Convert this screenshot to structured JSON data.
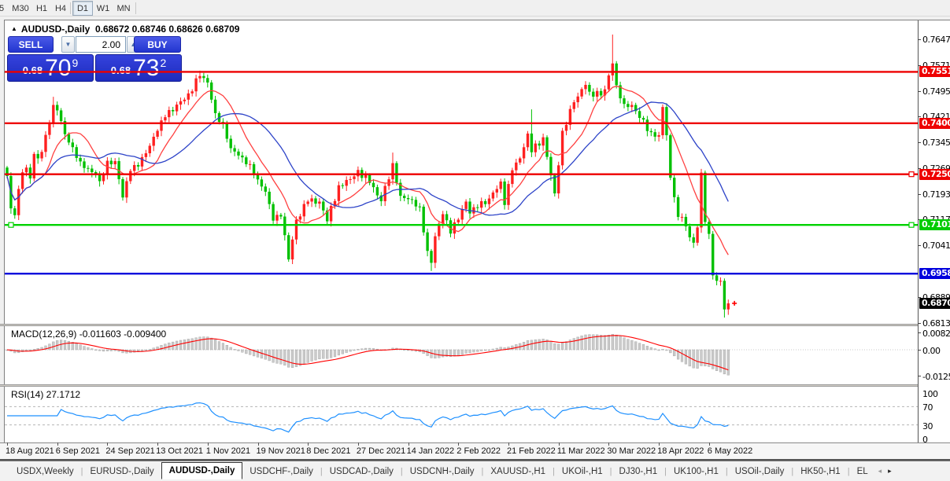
{
  "toolbar": {
    "timeframes": [
      "5",
      "M30",
      "H1",
      "H4",
      "D1",
      "W1",
      "MN"
    ],
    "active": "D1"
  },
  "window": {
    "title_symbol": "AUDUSD-,Daily",
    "title_ohlc": "0.68672 0.68746 0.68626 0.68709",
    "collapse_icon": "chart-triangle"
  },
  "trade_panel": {
    "sell_label": "SELL",
    "buy_label": "BUY",
    "volume": "2.00",
    "sell_price": {
      "prefix": "0.68",
      "big": "70",
      "sup": "9"
    },
    "buy_price": {
      "prefix": "0.68",
      "big": "73",
      "sup": "2"
    },
    "spin_down": "▼",
    "spin_up": "▲"
  },
  "price_axis": {
    "ticks": [
      "0.76470",
      "0.75710",
      "0.74950",
      "0.74210",
      "0.73450",
      "0.72690",
      "0.71930",
      "0.71170",
      "0.70410",
      "0.68890",
      "0.68130"
    ],
    "badges": [
      {
        "text": "0.75512",
        "bg": "#ee0000",
        "fg": "#ffffff"
      },
      {
        "text": "0.74002",
        "bg": "#ee0000",
        "fg": "#ffffff"
      },
      {
        "text": "0.72504",
        "bg": "#ee0000",
        "fg": "#ffffff"
      },
      {
        "text": "0.71013",
        "bg": "#00cc00",
        "fg": "#ffffff"
      },
      {
        "text": "0.69582",
        "bg": "#0000dd",
        "fg": "#ffffff"
      },
      {
        "text": "0.68709",
        "bg": "#000000",
        "fg": "#ffffff"
      }
    ]
  },
  "macd_panel": {
    "label": "MACD(12,26,9) -0.011603 -0.009400",
    "axis": [
      {
        "text": "0.008217",
        "value": 0.008217
      },
      {
        "text": "0.00",
        "value": 0
      },
      {
        "text": "-0.01254",
        "value": -0.01254
      }
    ]
  },
  "rsi_panel": {
    "label": "RSI(14) 27.1712",
    "axis": [
      {
        "text": "100",
        "value": 100
      },
      {
        "text": "70",
        "value": 70
      },
      {
        "text": "30",
        "value": 30
      },
      {
        "text": "0",
        "value": 0
      }
    ]
  },
  "time_axis": {
    "labels": [
      "18 Aug 2021",
      "6 Sep 2021",
      "24 Sep 2021",
      "13 Oct 2021",
      "1 Nov 2021",
      "19 Nov 2021",
      "8 Dec 2021",
      "27 Dec 2021",
      "14 Jan 2022",
      "2 Feb 2022",
      "21 Feb 2022",
      "11 Mar 2022",
      "30 Mar 2022",
      "18 Apr 2022",
      "6 May 2022"
    ],
    "bars_per_label": 13
  },
  "tabs": {
    "items": [
      "USDX,Weekly",
      "EURUSD-,Daily",
      "AUDUSD-,Daily",
      "USDCHF-,Daily",
      "USDCAD-,Daily",
      "USDCNH-,Daily",
      "XAUUSD-,H1",
      "UKOil-,H1",
      "DJ30-,H1",
      "UK100-,H1",
      "USOil-,Daily",
      "HK50-,H1",
      "EL"
    ],
    "active": "AUDUSD-,Daily",
    "scroll_left": "◂",
    "scroll_right": "▸"
  },
  "chart_data": {
    "type": "candlestick",
    "symbol": "AUDUSD-",
    "timeframe": "Daily",
    "title_ohlc": {
      "open": 0.68672,
      "high": 0.68746,
      "low": 0.68626,
      "close": 0.68709
    },
    "bar_count": 188,
    "price_axis_range": {
      "top_tick": 0.7647,
      "bottom_tick": 0.6813,
      "tick_step": 0.0076
    },
    "x_labels": [
      "18 Aug 2021",
      "6 Sep 2021",
      "24 Sep 2021",
      "13 Oct 2021",
      "1 Nov 2021",
      "19 Nov 2021",
      "8 Dec 2021",
      "27 Dec 2021",
      "14 Jan 2022",
      "2 Feb 2022",
      "21 Feb 2022",
      "11 Mar 2022",
      "30 Mar 2022",
      "18 Apr 2022",
      "6 May 2022"
    ],
    "anchors": [
      [
        0,
        0.7245
      ],
      [
        1,
        0.715
      ],
      [
        2,
        0.713
      ],
      [
        3,
        0.7207
      ],
      [
        4,
        0.7256
      ],
      [
        5,
        0.727
      ],
      [
        6,
        0.7238
      ],
      [
        7,
        0.731
      ],
      [
        8,
        0.7297
      ],
      [
        9,
        0.7316
      ],
      [
        10,
        0.7366
      ],
      [
        11,
        0.7401
      ],
      [
        12,
        0.7454
      ],
      [
        13,
        0.7438
      ],
      [
        15,
        0.7368
      ],
      [
        17,
        0.733
      ],
      [
        19,
        0.7288
      ],
      [
        21,
        0.7267
      ],
      [
        23,
        0.7248
      ],
      [
        24,
        0.723
      ],
      [
        26,
        0.729
      ],
      [
        28,
        0.7289
      ],
      [
        29,
        0.7236
      ],
      [
        30,
        0.7182
      ],
      [
        31,
        0.723
      ],
      [
        32,
        0.726
      ],
      [
        34,
        0.7273
      ],
      [
        36,
        0.7312
      ],
      [
        39,
        0.7378
      ],
      [
        41,
        0.7418
      ],
      [
        45,
        0.7465
      ],
      [
        47,
        0.7488
      ],
      [
        50,
        0.7539
      ],
      [
        52,
        0.752
      ],
      [
        54,
        0.743
      ],
      [
        56,
        0.74
      ],
      [
        58,
        0.7327
      ],
      [
        61,
        0.73
      ],
      [
        63,
        0.728
      ],
      [
        65,
        0.7235
      ],
      [
        67,
        0.7199
      ],
      [
        69,
        0.7114
      ],
      [
        71,
        0.7126
      ],
      [
        73,
        0.7
      ],
      [
        75,
        0.7117
      ],
      [
        78,
        0.717
      ],
      [
        81,
        0.717
      ],
      [
        83,
        0.7112
      ],
      [
        86,
        0.7218
      ],
      [
        89,
        0.7236
      ],
      [
        91,
        0.7263
      ],
      [
        94,
        0.7225
      ],
      [
        97,
        0.7171
      ],
      [
        100,
        0.7283
      ],
      [
        102,
        0.7187
      ],
      [
        105,
        0.7175
      ],
      [
        107,
        0.7155
      ],
      [
        109,
        0.7025
      ],
      [
        110,
        0.699
      ],
      [
        111,
        0.7068
      ],
      [
        113,
        0.7133
      ],
      [
        115,
        0.7076
      ],
      [
        119,
        0.717
      ],
      [
        120,
        0.7135
      ],
      [
        122,
        0.7152
      ],
      [
        125,
        0.7179
      ],
      [
        128,
        0.7229
      ],
      [
        129,
        0.716
      ],
      [
        131,
        0.7262
      ],
      [
        133,
        0.7297
      ],
      [
        135,
        0.737
      ],
      [
        136,
        0.7315
      ],
      [
        139,
        0.7359
      ],
      [
        142,
        0.7194
      ],
      [
        144,
        0.7378
      ],
      [
        147,
        0.7462
      ],
      [
        150,
        0.7513
      ],
      [
        151,
        0.7493
      ],
      [
        154,
        0.7482
      ],
      [
        155,
        0.75
      ],
      [
        157,
        0.7576
      ],
      [
        158,
        0.7512
      ],
      [
        160,
        0.7457
      ],
      [
        162,
        0.7454
      ],
      [
        164,
        0.7416
      ],
      [
        167,
        0.7374
      ],
      [
        169,
        0.7365
      ],
      [
        170,
        0.7448
      ],
      [
        171,
        0.7365
      ],
      [
        172,
        0.724
      ],
      [
        173,
        0.7183
      ],
      [
        174,
        0.7125
      ],
      [
        175,
        0.7125
      ],
      [
        176,
        0.7097
      ],
      [
        177,
        0.7065
      ],
      [
        178,
        0.7049
      ],
      [
        179,
        0.7094
      ],
      [
        180,
        0.7255
      ],
      [
        181,
        0.711
      ],
      [
        182,
        0.7075
      ],
      [
        183,
        0.6953
      ],
      [
        184,
        0.6937
      ],
      [
        185,
        0.6937
      ],
      [
        186,
        0.6853
      ],
      [
        187,
        0.68709
      ]
    ],
    "wick_overrides": {
      "12": {
        "h": 0.7478
      },
      "50": {
        "h": 0.7555
      },
      "73": {
        "l": 0.6993
      },
      "100": {
        "h": 0.7314
      },
      "110": {
        "l": 0.6966
      },
      "136": {
        "h": 0.7441
      },
      "157": {
        "h": 0.7661
      },
      "186": {
        "l": 0.6829
      }
    },
    "h_lines": [
      {
        "price": 0.75512,
        "color": "#ee0000",
        "handles": []
      },
      {
        "price": 0.74002,
        "color": "#ee0000",
        "handles": []
      },
      {
        "price": 0.72504,
        "color": "#ee0000",
        "handles": [
          "right"
        ]
      },
      {
        "price": 0.71013,
        "color": "#00d200",
        "handles": [
          "left",
          "right"
        ]
      },
      {
        "price": 0.69582,
        "color": "#0000dd",
        "handles": []
      }
    ],
    "last_close": 0.68709,
    "sell_marker": {
      "bar": 188.6,
      "price": 0.6871,
      "color": "#ff0000"
    },
    "moving_averages": [
      {
        "period": 10,
        "color": "#ff4040"
      },
      {
        "period": 24,
        "color": "#2d43c8"
      }
    ],
    "colors": {
      "up": "#ff2020",
      "down": "#00c000",
      "background": "#ffffff"
    },
    "indicators": [
      {
        "name": "MACD",
        "params": [
          12,
          26,
          9
        ],
        "value": -0.011603,
        "signal_value": -0.0094,
        "axis_max": 0.008217,
        "axis_min": -0.01254,
        "histogram_color": "#cbcbcb",
        "signal_color": "#ff0000"
      },
      {
        "name": "RSI",
        "params": [
          14
        ],
        "value": 27.1712,
        "levels": [
          70,
          30
        ],
        "line_color": "#1e90ff"
      }
    ]
  }
}
